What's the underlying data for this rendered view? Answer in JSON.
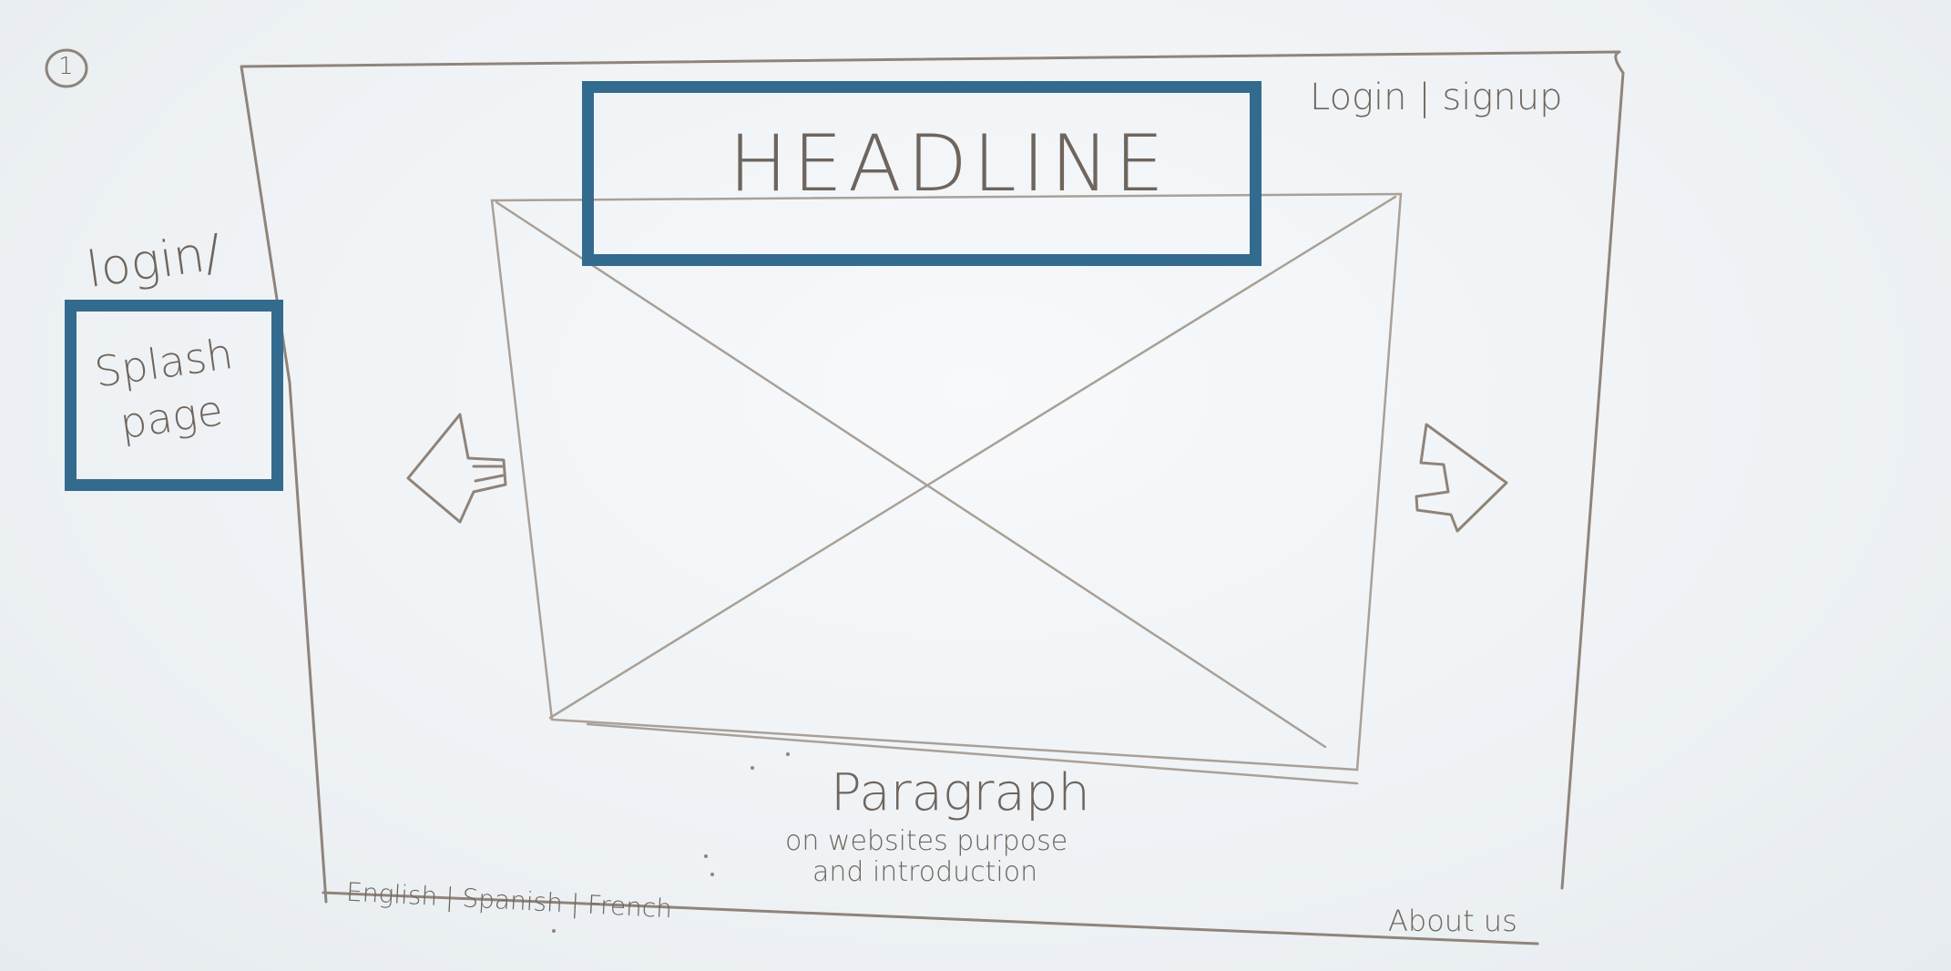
{
  "page_number": "1",
  "side_note": {
    "top": "login/",
    "boxed": "Splash page"
  },
  "header": {
    "headline": "HEADLINE",
    "auth_link": "Login | signup"
  },
  "carousel": {
    "prev_icon": "arrow-left-icon",
    "next_icon": "arrow-right-icon",
    "image_placeholder_icon": "image-placeholder-icon"
  },
  "content": {
    "paragraph_title": "Paragraph",
    "paragraph_line1": "on websites purpose",
    "paragraph_line2": "and introduction"
  },
  "footer": {
    "languages": "English | Spanish | French",
    "about": "About us"
  },
  "colors": {
    "highlight": "#336b8f",
    "pencil": "#8f847a"
  }
}
